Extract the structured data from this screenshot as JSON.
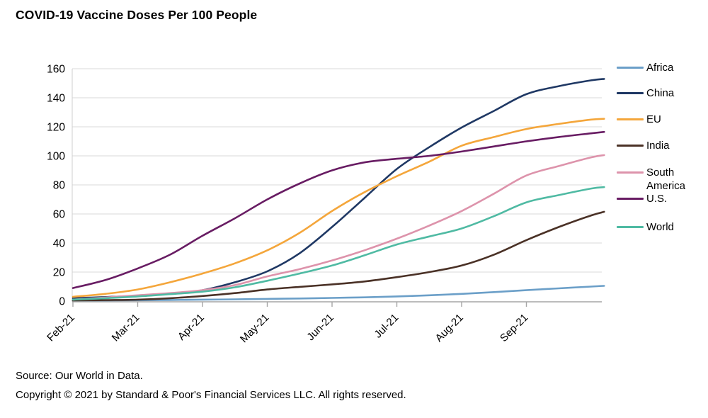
{
  "title": "COVID-19 Vaccine Doses Per 100 People",
  "footer": {
    "source": "Source: Our World in Data.",
    "copyright": "Copyright © 2021 by Standard & Poor's Financial Services LLC. All rights reserved."
  },
  "colors": {
    "gridline": "#d9d9d9",
    "axis_line": "#a6a6a6",
    "text": "#000000",
    "background": "#ffffff"
  },
  "chart_data": {
    "type": "line",
    "title": "COVID-19 Vaccine Doses Per 100 People",
    "xlabel": "",
    "ylabel": "",
    "x_unit": "months since Feb-2021",
    "x_tick_labels": [
      "Feb-21",
      "Mar-21",
      "Apr-21",
      "May-21",
      "Jun-21",
      "Jul-21",
      "Aug-21",
      "Sep-21"
    ],
    "x": [
      0,
      0.5,
      1,
      1.5,
      2,
      2.5,
      3,
      3.5,
      4,
      4.5,
      5,
      5.5,
      6,
      6.5,
      7,
      7.5,
      8,
      8.2
    ],
    "y_ticks": [
      0,
      20,
      40,
      60,
      80,
      100,
      120,
      140,
      160
    ],
    "ylim": [
      0,
      160
    ],
    "xlim": [
      0,
      8.35
    ],
    "grid": true,
    "legend_position": "right",
    "series": [
      {
        "name": "Africa",
        "color": "#6b9fc8",
        "values": [
          0.2,
          0.4,
          0.6,
          0.8,
          1,
          1.2,
          1.5,
          1.8,
          2.2,
          2.6,
          3.2,
          4,
          5,
          6.2,
          7.5,
          8.8,
          10,
          10.5
        ]
      },
      {
        "name": "China",
        "color": "#1f3864",
        "values": [
          2,
          2.8,
          3.5,
          5,
          7.5,
          13,
          20.5,
          33,
          51,
          71,
          91,
          106,
          119.5,
          131,
          142.5,
          148,
          152,
          153
        ]
      },
      {
        "name": "EU",
        "color": "#f4a63b",
        "values": [
          3,
          5,
          8,
          13,
          19,
          26,
          35,
          47,
          62,
          75,
          86,
          96,
          107,
          113,
          118.5,
          122,
          125,
          125.5
        ]
      },
      {
        "name": "India",
        "color": "#4a3126",
        "values": [
          0.4,
          0.7,
          1,
          2,
          3.5,
          5.5,
          8,
          9.8,
          11.5,
          13.5,
          16.5,
          20,
          24.5,
          32,
          42,
          51,
          59,
          61.5
        ]
      },
      {
        "name": "South America",
        "color": "#dd93ab",
        "values": [
          1,
          2.5,
          4,
          5.5,
          7.5,
          11,
          17,
          22,
          28,
          35,
          43,
          52,
          62,
          74,
          86.5,
          93,
          99,
          100.5
        ]
      },
      {
        "name": "U.S.",
        "color": "#681c63",
        "values": [
          9,
          14.5,
          22.5,
          32,
          45,
          57,
          70,
          81,
          90,
          95.5,
          98,
          100,
          103,
          106.5,
          110,
          113,
          115.5,
          116.5
        ]
      },
      {
        "name": "World",
        "color": "#4fbaa3",
        "values": [
          1,
          2,
          3.2,
          4.8,
          6.5,
          9.5,
          14,
          19,
          24.5,
          31.5,
          39,
          44.5,
          50,
          58.5,
          68,
          73,
          77.5,
          78.5
        ]
      }
    ]
  }
}
